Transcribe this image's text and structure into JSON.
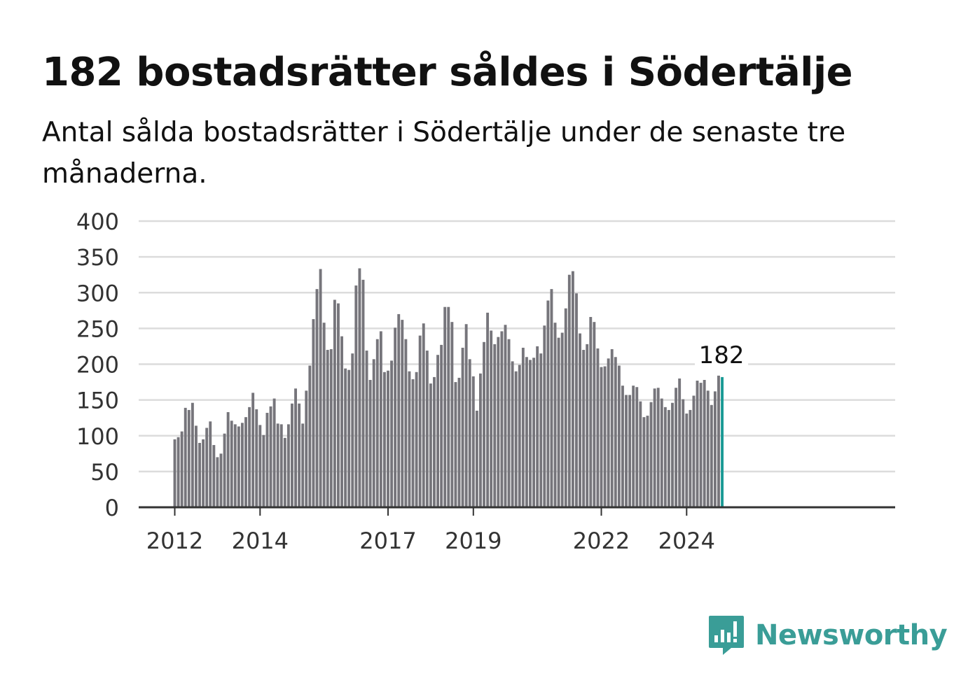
{
  "header": {
    "title": "182 bostadsrätter såldes i Södertälje",
    "subtitle": "Antal sålda bostadsrätter i Södertälje under de senaste tre månaderna."
  },
  "brand": {
    "name": "Newsworthy",
    "icon": "newsworthy-logo-icon",
    "color": "#3a9d97"
  },
  "chart_data": {
    "type": "bar",
    "title": "",
    "xlabel": "",
    "ylabel": "",
    "ylim": [
      0,
      400
    ],
    "yticks": [
      0,
      50,
      100,
      150,
      200,
      250,
      300,
      350,
      400
    ],
    "xtick_labels": [
      {
        "label": "2012",
        "index": 0
      },
      {
        "label": "2014",
        "index": 24
      },
      {
        "label": "2017",
        "index": 60
      },
      {
        "label": "2019",
        "index": 84
      },
      {
        "label": "2022",
        "index": 120
      },
      {
        "label": "2024",
        "index": 144
      }
    ],
    "grid": true,
    "bar_color": "#76757b",
    "highlight_color": "#1a9a95",
    "highlight_index": 154,
    "highlight_label": "182",
    "values": [
      95,
      98,
      106,
      139,
      136,
      146,
      114,
      90,
      95,
      111,
      120,
      87,
      70,
      75,
      103,
      133,
      121,
      116,
      113,
      118,
      126,
      140,
      160,
      137,
      115,
      101,
      132,
      141,
      152,
      117,
      116,
      97,
      116,
      145,
      166,
      145,
      117,
      163,
      198,
      263,
      305,
      333,
      258,
      220,
      221,
      290,
      285,
      239,
      194,
      192,
      215,
      310,
      334,
      318,
      219,
      178,
      207,
      235,
      246,
      189,
      191,
      205,
      251,
      270,
      262,
      235,
      190,
      179,
      189,
      240,
      257,
      219,
      173,
      182,
      213,
      227,
      280,
      280,
      259,
      175,
      181,
      223,
      256,
      207,
      183,
      135,
      187,
      231,
      272,
      247,
      228,
      238,
      246,
      255,
      235,
      204,
      190,
      199,
      223,
      210,
      206,
      209,
      225,
      215,
      254,
      289,
      305,
      258,
      237,
      244,
      278,
      325,
      330,
      299,
      243,
      220,
      228,
      266,
      259,
      222,
      196,
      197,
      208,
      221,
      210,
      198,
      170,
      157,
      157,
      170,
      168,
      148,
      126,
      128,
      147,
      166,
      167,
      152,
      140,
      136,
      146,
      167,
      180,
      151,
      131,
      136,
      156,
      177,
      174,
      178,
      163,
      143,
      162,
      184,
      182
    ]
  }
}
